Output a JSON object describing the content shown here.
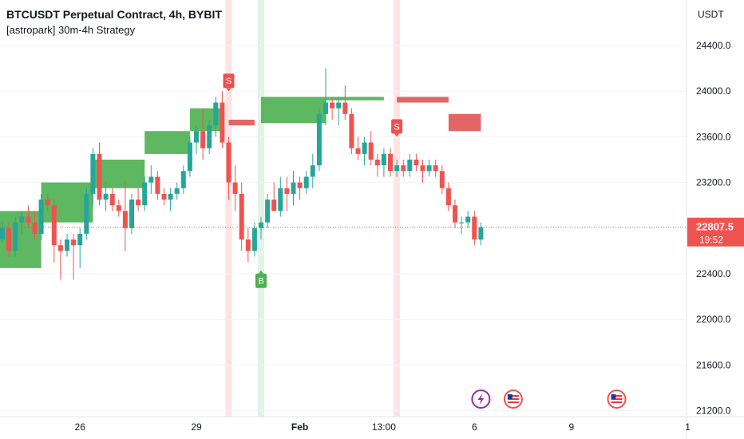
{
  "header": {
    "title": "BTCUSDT Perpetual Contract, 4h, BYBIT",
    "strategy": "[astropark] 30m-4h Strategy"
  },
  "price_axis": {
    "currency": "USDT",
    "last_price": "22807.5",
    "countdown": "19:52"
  },
  "colors": {
    "up": "#26a69a",
    "down": "#ef5350",
    "band_up": "#4caf50",
    "band_down": "#e05555",
    "buy_marker": "#4caf50",
    "sell_marker": "#f05050",
    "sell_zone": "#fde4e4",
    "buy_zone": "#e3f4e6"
  },
  "chart_data": {
    "type": "candlestick",
    "symbol": "BTCUSDT Perpetual Contract",
    "interval": "4h",
    "exchange": "BYBIT",
    "y_ticks": [
      21200,
      21600,
      22000,
      22400,
      23200,
      23600,
      24000,
      24400
    ],
    "y_tick_labels": [
      "21200.0",
      "21600.0",
      "22000.0",
      "22400.0",
      "23200.0",
      "23600.0",
      "24000.0",
      "24400.0"
    ],
    "x_ticks": [
      {
        "label": "26",
        "bar": 12,
        "bold": false
      },
      {
        "label": "29",
        "bar": 30,
        "bold": false
      },
      {
        "label": "Feb",
        "bar": 46,
        "bold": true
      },
      {
        "label": "13:00",
        "bar": 59,
        "bold": false
      },
      {
        "label": "6",
        "bar": 73,
        "bold": false
      },
      {
        "label": "9",
        "bar": 88,
        "bold": false
      },
      {
        "label": "1",
        "bar": 106,
        "bold": false
      }
    ],
    "last_bar_index": 74,
    "candles": [
      [
        22700,
        22850,
        22680,
        22800
      ],
      [
        22800,
        22850,
        22550,
        22600
      ],
      [
        22600,
        22900,
        22550,
        22850
      ],
      [
        22850,
        22950,
        22750,
        22900
      ],
      [
        22900,
        23000,
        22800,
        22850
      ],
      [
        22850,
        22950,
        22700,
        22750
      ],
      [
        22750,
        23100,
        22700,
        23050
      ],
      [
        23050,
        23100,
        22950,
        23000
      ],
      [
        23000,
        23050,
        22500,
        22650
      ],
      [
        22650,
        22700,
        22350,
        22600
      ],
      [
        22600,
        22750,
        22550,
        22700
      ],
      [
        22700,
        22750,
        22350,
        22650
      ],
      [
        22650,
        22800,
        22450,
        22750
      ],
      [
        22750,
        23150,
        22700,
        23100
      ],
      [
        23100,
        23500,
        23000,
        23450
      ],
      [
        23450,
        23550,
        23000,
        23050
      ],
      [
        23050,
        23200,
        22950,
        23100
      ],
      [
        23100,
        23150,
        22950,
        23000
      ],
      [
        23000,
        23050,
        22900,
        22950
      ],
      [
        22950,
        23200,
        22600,
        22800
      ],
      [
        22800,
        23100,
        22750,
        23050
      ],
      [
        23050,
        23150,
        22950,
        23000
      ],
      [
        23000,
        23250,
        22950,
        23200
      ],
      [
        23200,
        23350,
        23100,
        23250
      ],
      [
        23250,
        23300,
        23050,
        23100
      ],
      [
        23100,
        23150,
        23000,
        23050
      ],
      [
        23050,
        23150,
        22950,
        23100
      ],
      [
        23100,
        23200,
        23050,
        23150
      ],
      [
        23150,
        23350,
        23100,
        23300
      ],
      [
        23300,
        23600,
        23250,
        23550
      ],
      [
        23550,
        23700,
        23450,
        23650
      ],
      [
        23650,
        23850,
        23400,
        23500
      ],
      [
        23500,
        23750,
        23450,
        23700
      ],
      [
        23700,
        23950,
        23600,
        23900
      ],
      [
        23900,
        24000,
        23500,
        23550
      ],
      [
        23550,
        23600,
        23050,
        23200
      ],
      [
        23200,
        23350,
        22950,
        23100
      ],
      [
        23100,
        23200,
        22600,
        22700
      ],
      [
        22700,
        22800,
        22500,
        22600
      ],
      [
        22600,
        22850,
        22550,
        22800
      ],
      [
        22800,
        22900,
        22700,
        22850
      ],
      [
        22850,
        23100,
        22800,
        23050
      ],
      [
        23050,
        23200,
        22950,
        22950
      ],
      [
        22950,
        23250,
        22900,
        23150
      ],
      [
        23150,
        23250,
        22950,
        23100
      ],
      [
        23100,
        23300,
        23000,
        23200
      ],
      [
        23200,
        23250,
        23050,
        23150
      ],
      [
        23150,
        23300,
        23100,
        23250
      ],
      [
        23250,
        23450,
        23150,
        23350
      ],
      [
        23350,
        23850,
        23300,
        23800
      ],
      [
        23800,
        24200,
        23700,
        23900
      ],
      [
        23900,
        23950,
        23750,
        23850
      ],
      [
        23850,
        23950,
        23700,
        23900
      ],
      [
        23900,
        24050,
        23750,
        23800
      ],
      [
        23800,
        23850,
        23450,
        23500
      ],
      [
        23500,
        23600,
        23400,
        23450
      ],
      [
        23450,
        23600,
        23350,
        23550
      ],
      [
        23550,
        23650,
        23350,
        23400
      ],
      [
        23400,
        23450,
        23250,
        23350
      ],
      [
        23350,
        23500,
        23250,
        23450
      ],
      [
        23450,
        23500,
        23250,
        23300
      ],
      [
        23300,
        23400,
        23250,
        23350
      ],
      [
        23350,
        23400,
        23250,
        23300
      ],
      [
        23300,
        23450,
        23250,
        23400
      ],
      [
        23400,
        23450,
        23300,
        23350
      ],
      [
        23350,
        23400,
        23200,
        23300
      ],
      [
        23300,
        23400,
        23250,
        23350
      ],
      [
        23350,
        23400,
        23250,
        23300
      ],
      [
        23300,
        23350,
        23100,
        23150
      ],
      [
        23150,
        23200,
        22950,
        23000
      ],
      [
        23000,
        23050,
        22800,
        22850
      ],
      [
        22850,
        22900,
        22750,
        22850
      ],
      [
        22850,
        22950,
        22800,
        22900
      ],
      [
        22900,
        22950,
        22650,
        22700
      ],
      [
        22700,
        22850,
        22650,
        22807.5
      ]
    ],
    "bands": [
      {
        "color": "up",
        "upper": 22950,
        "lower": 22450,
        "x_from_bar": -1,
        "x_to_bar": 6
      },
      {
        "color": "up",
        "upper": 23200,
        "lower": 22850,
        "x_from_bar": 6,
        "x_to_bar": 14
      },
      {
        "color": "up",
        "upper": 23400,
        "lower": 23150,
        "x_from_bar": 14,
        "x_to_bar": 22
      },
      {
        "color": "up",
        "upper": 23650,
        "lower": 23450,
        "x_from_bar": 22,
        "x_to_bar": 29
      },
      {
        "color": "up",
        "upper": 23850,
        "lower": 23650,
        "x_from_bar": 29,
        "x_to_bar": 34
      },
      {
        "color": "down",
        "upper": 23750,
        "lower": 23700,
        "x_from_bar": 35,
        "x_to_bar": 39
      },
      {
        "color": "up",
        "upper": 23950,
        "lower": 23720,
        "x_from_bar": 40,
        "x_to_bar": 50
      },
      {
        "color": "up",
        "upper": 23950,
        "lower": 23920,
        "x_from_bar": 50,
        "x_to_bar": 59
      },
      {
        "color": "down",
        "upper": 23950,
        "lower": 23900,
        "x_from_bar": 61,
        "x_to_bar": 69
      },
      {
        "color": "down",
        "upper": 23800,
        "lower": 23650,
        "x_from_bar": 69,
        "x_to_bar": 74
      }
    ],
    "signals": [
      {
        "type": "sell",
        "label": "S",
        "bar": 35,
        "price": 24000
      },
      {
        "type": "buy",
        "label": "B",
        "bar": 40,
        "price": 22500
      },
      {
        "type": "sell",
        "label": "S",
        "bar": 61,
        "price": 23600
      }
    ],
    "highlight_zones": [
      {
        "type": "sell",
        "bar": 35
      },
      {
        "type": "buy",
        "bar": 40
      },
      {
        "type": "sell",
        "bar": 61
      }
    ],
    "event_markers": [
      {
        "icon": "lightning-icon",
        "bar": 74,
        "color": "#9c27b0"
      },
      {
        "icon": "us-flag-icon",
        "bar": 79,
        "color": "#ef5350"
      },
      {
        "icon": "us-flag-icon",
        "bar": 95,
        "color": "#ef5350"
      }
    ]
  }
}
